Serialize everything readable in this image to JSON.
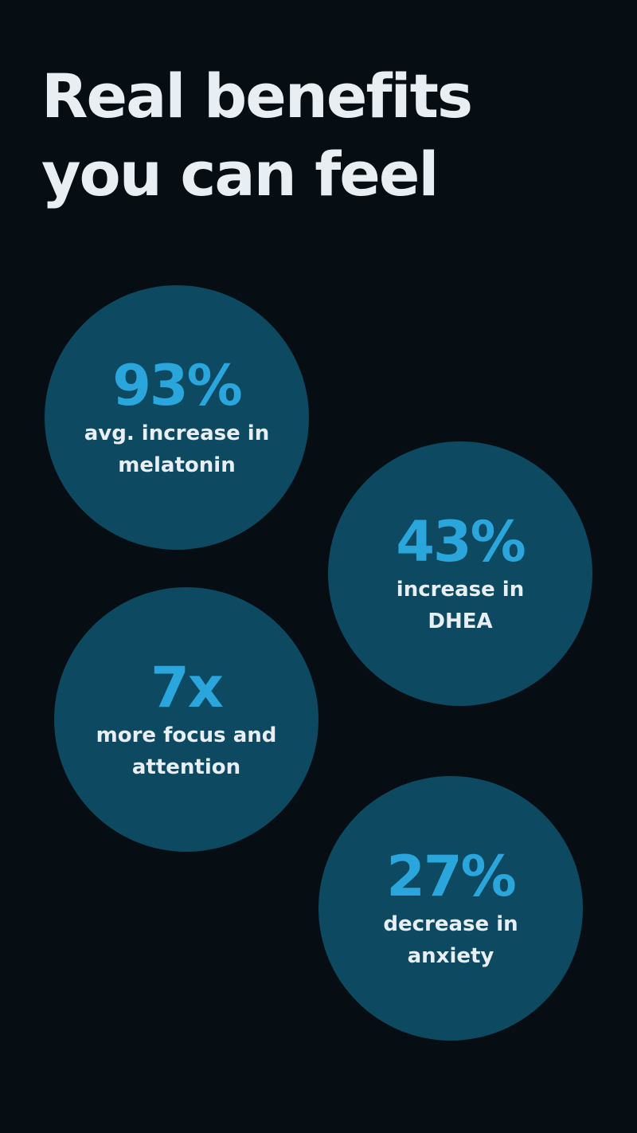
{
  "title_line1": "Real benefits",
  "title_line2": "you can feel",
  "stats": [
    {
      "value": "93%",
      "label_line1": "avg. increase in",
      "label_line2": "melatonin"
    },
    {
      "value": "43%",
      "label_line1": "increase in",
      "label_line2": "DHEA"
    },
    {
      "value": "7x",
      "label_line1": "more focus and",
      "label_line2": "attention"
    },
    {
      "value": "27%",
      "label_line1": "decrease in",
      "label_line2": "anxiety"
    }
  ],
  "colors": {
    "background": "#060d13",
    "circle": "#0d4a62",
    "accent": "#2aa6dc",
    "text": "#e8eef2"
  }
}
